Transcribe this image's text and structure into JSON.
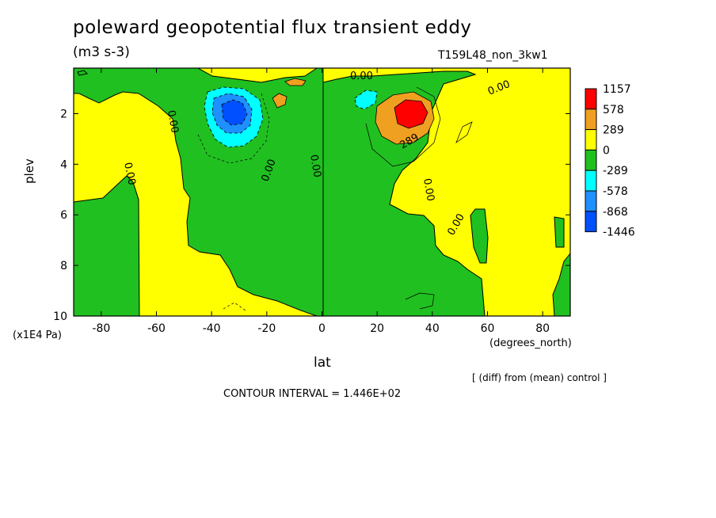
{
  "chart_data": {
    "type": "heatmap",
    "title": "poleward geopotential flux transient eddy",
    "units": "(m3 s-3)",
    "run_label": "T159L48_non_3kw1",
    "xlabel": "lat",
    "xunit": "(degrees_north)",
    "ylabel": "plev",
    "yunit": "(x1E4 Pa)",
    "x_ticks": [
      "-80",
      "-60",
      "-40",
      "-20",
      "0",
      "20",
      "40",
      "60",
      "80"
    ],
    "x_tick_values": [
      -80,
      -60,
      -40,
      -20,
      0,
      20,
      40,
      60,
      80
    ],
    "y_ticks": [
      "2",
      "4",
      "6",
      "8",
      "10"
    ],
    "y_tick_values": [
      2,
      4,
      6,
      8,
      10
    ],
    "xlim": [
      -90,
      90
    ],
    "ylim": [
      0.2,
      10
    ],
    "y_inverted": true,
    "contour_interval": "1.446E+02",
    "contour_labels": [
      "0.00",
      "289"
    ],
    "legend": {
      "placement": "right",
      "labels": [
        "1157",
        "578",
        "289",
        "0",
        "-289",
        "-578",
        "-868",
        "-1446"
      ],
      "colors": [
        "#ff0000",
        "#f0a020",
        "#ffff00",
        "#20c020",
        "#00ffff",
        "#1e90ff",
        "#0050ff"
      ]
    },
    "features": [
      {
        "kind": "min",
        "lat": -32,
        "plev": 1.9,
        "value": -1446
      },
      {
        "kind": "max",
        "lat": 30,
        "plev": 1.9,
        "value": 1157
      }
    ]
  },
  "footer": {
    "diff_note": "[ (diff) from (mean) control ]",
    "contour_text": "CONTOUR INTERVAL = 1.446E+02"
  },
  "colors": {
    "positive": "#ffff00",
    "negative": "#20c020",
    "strong_positive": "#f0a020",
    "max_positive": "#ff0000",
    "light_negative": "#00ffff",
    "mid_negative": "#1e90ff",
    "strong_negative": "#0050ff"
  }
}
